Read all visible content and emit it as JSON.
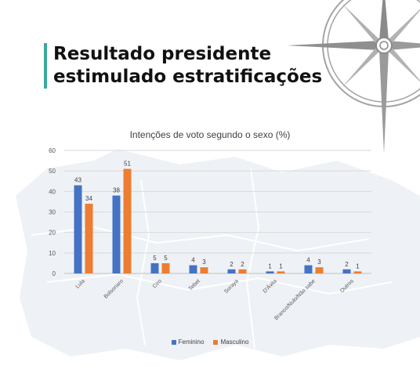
{
  "slide": {
    "title_line1": "Resultado presidente",
    "title_line2": "estimulado estratificações",
    "accent_color": "#3aa99f"
  },
  "chart_data": {
    "type": "bar",
    "title": "Intenções de voto segundo o sexo (%)",
    "categories": [
      "Lula",
      "Bolsonaro",
      "Ciro",
      "Tebet",
      "Soraya",
      "D'Ávila",
      "Branco/Nulo/Não sabe",
      "Outros"
    ],
    "series": [
      {
        "name": "Feminino",
        "color": "#4472c4",
        "values": [
          43,
          38,
          5,
          4,
          2,
          1,
          4,
          2
        ]
      },
      {
        "name": "Masculino",
        "color": "#ed7d31",
        "values": [
          34,
          51,
          5,
          3,
          2,
          1,
          3,
          1
        ]
      }
    ],
    "ylim": [
      0,
      60
    ],
    "yticks": [
      0,
      10,
      20,
      30,
      40,
      50,
      60
    ],
    "grid": true,
    "legend": "bottom"
  }
}
